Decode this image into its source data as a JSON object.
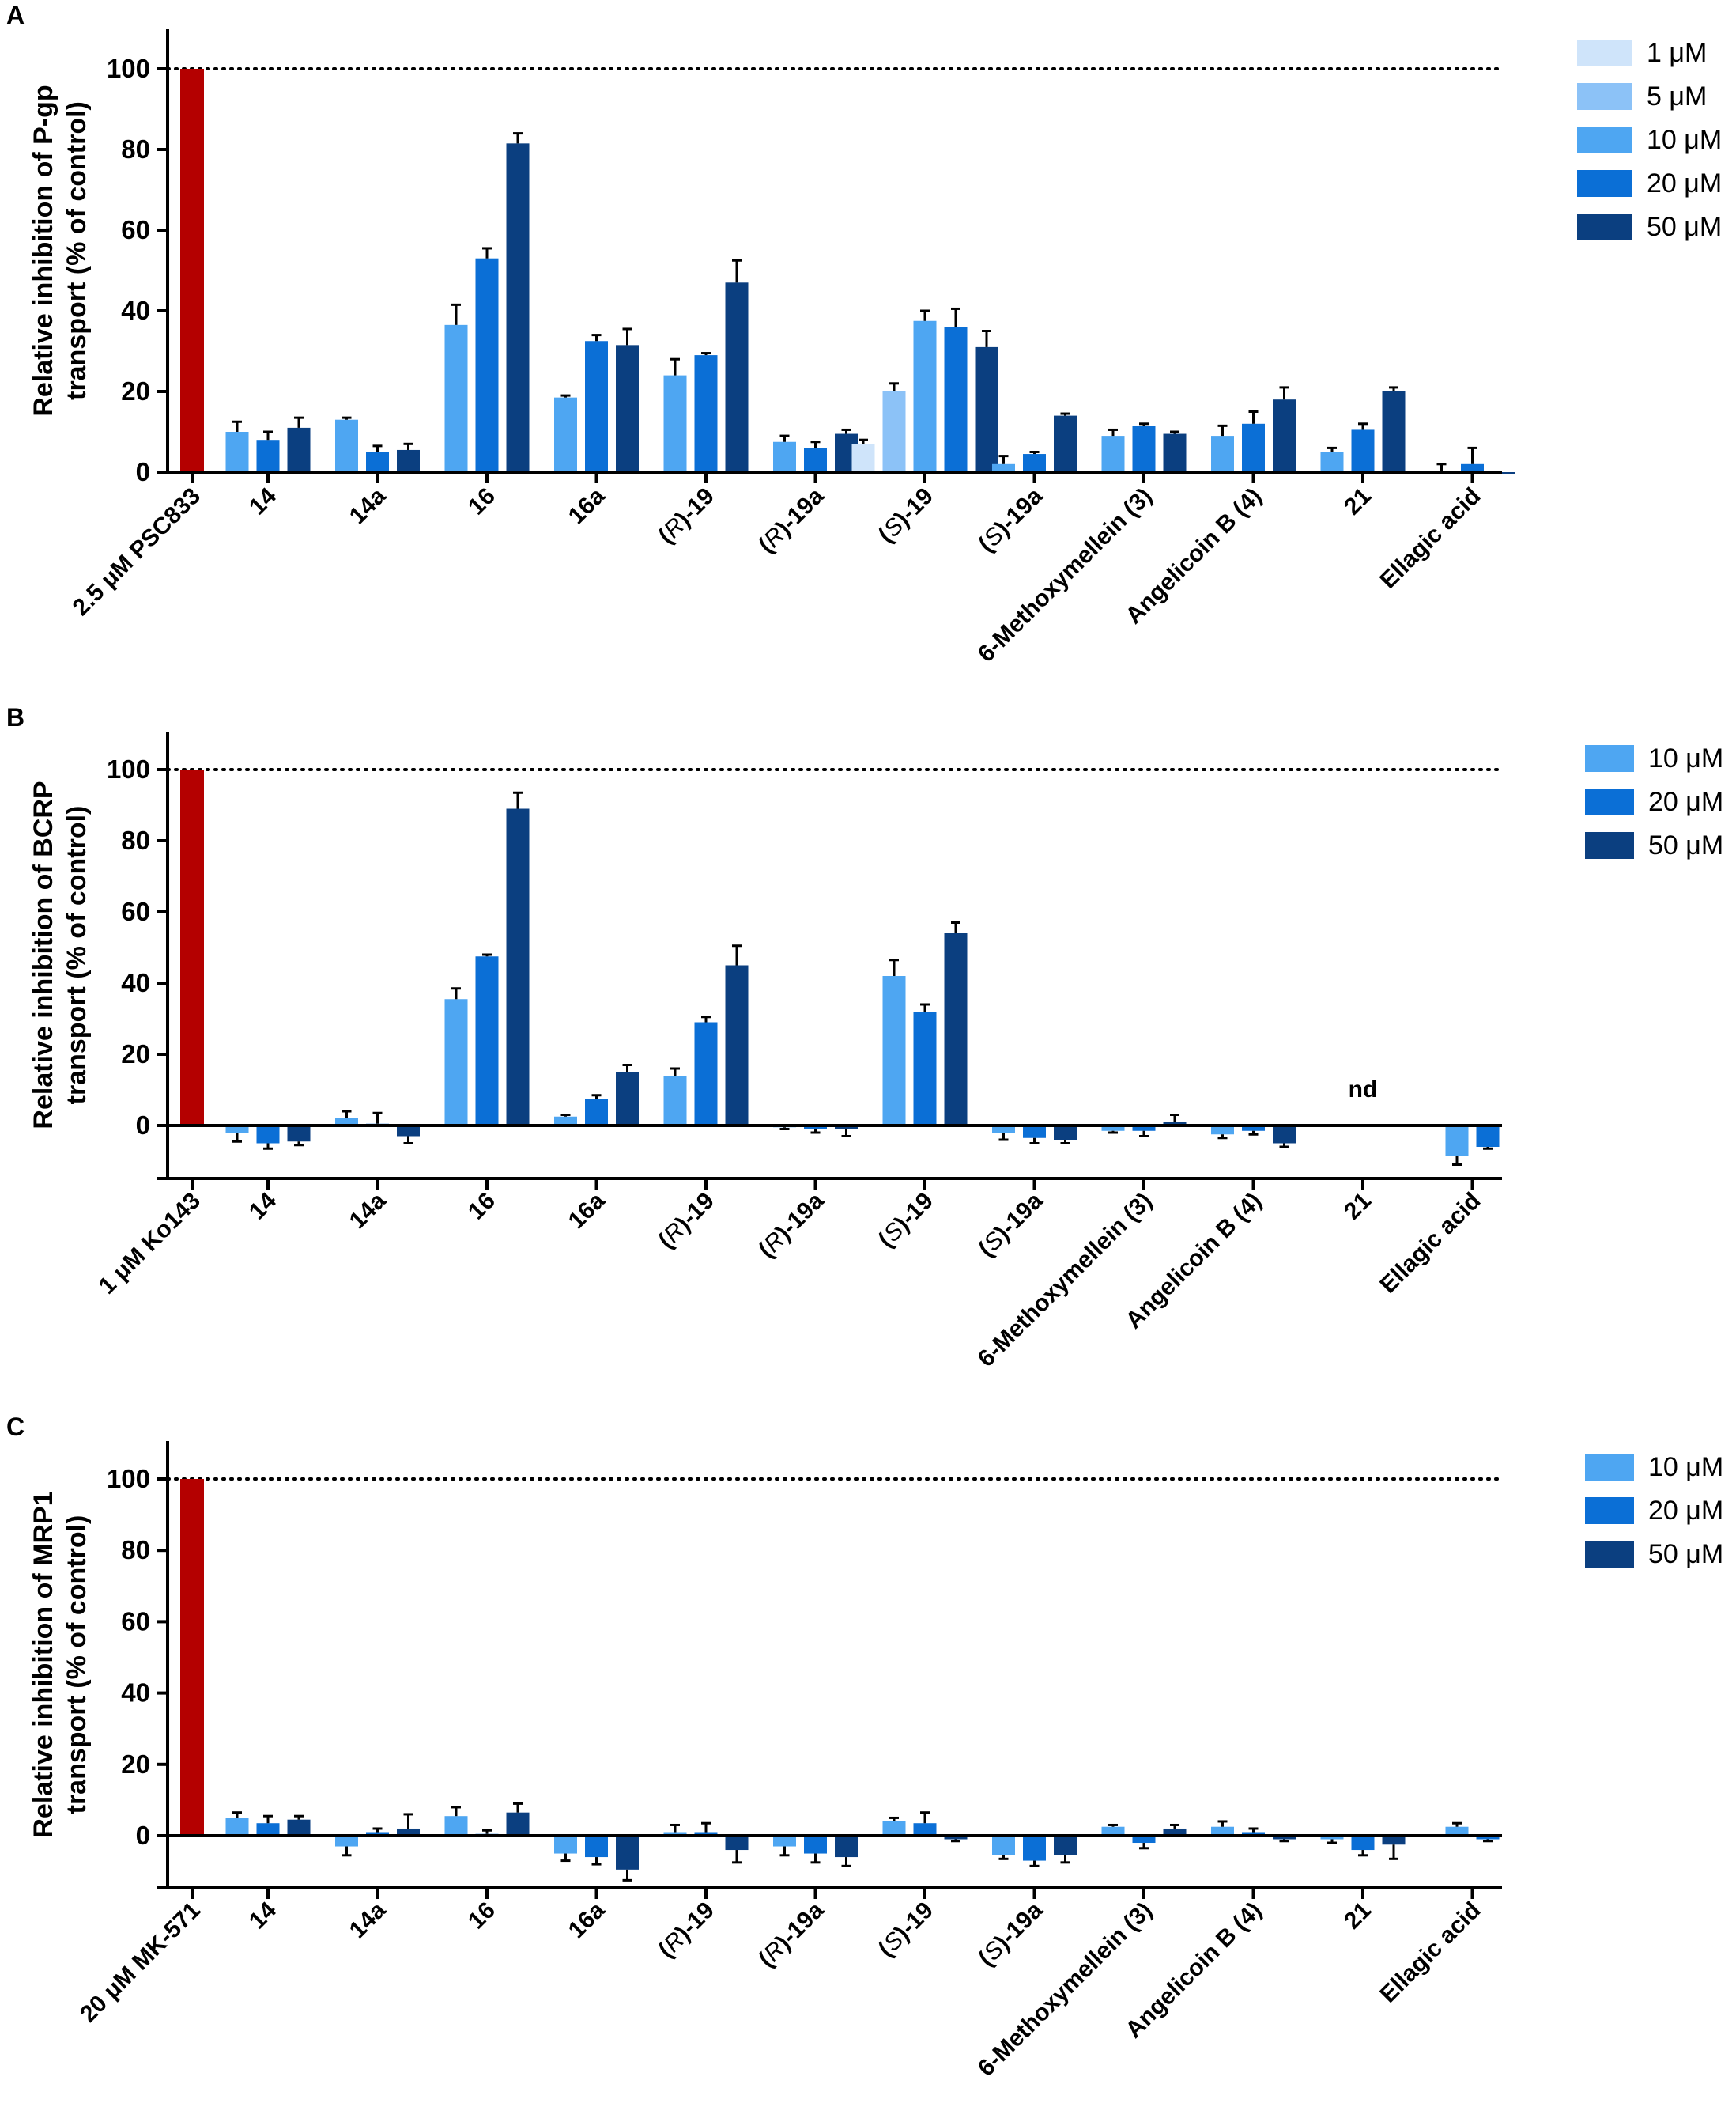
{
  "colors": {
    "c1": "#cfe4fa",
    "c5": "#8cc2f7",
    "c10": "#4ea6f2",
    "c20": "#0b6fd6",
    "c50": "#0b3f80",
    "control": "#b40000"
  },
  "chart_data": [
    {
      "type": "bar",
      "panel": "A",
      "ylabel_line1": "Relative inhibition of P-gp",
      "ylabel_line2": "transport (% of control)",
      "ylim": [
        0,
        110
      ],
      "yticks": [
        "0",
        "20",
        "40",
        "60",
        "80",
        "100"
      ],
      "reference_line": 100,
      "control": {
        "label": "2.5 μM PSC833",
        "value": 100
      },
      "legend": [
        {
          "label": "1 μM",
          "color_key": "c1"
        },
        {
          "label": "5 μM",
          "color_key": "c5"
        },
        {
          "label": "10 μM",
          "color_key": "c10"
        },
        {
          "label": "20 μM",
          "color_key": "c20"
        },
        {
          "label": "50 μM",
          "color_key": "c50"
        }
      ],
      "groups": [
        {
          "label": "14",
          "italic_prefix": "",
          "bars": [
            {
              "c": "c10",
              "v": 10,
              "e": 2.5
            },
            {
              "c": "c20",
              "v": 8,
              "e": 2
            },
            {
              "c": "c50",
              "v": 11,
              "e": 2.5
            }
          ]
        },
        {
          "label": "14a",
          "italic_prefix": "",
          "bars": [
            {
              "c": "c10",
              "v": 13,
              "e": 0.5
            },
            {
              "c": "c20",
              "v": 5,
              "e": 1.5
            },
            {
              "c": "c50",
              "v": 5.5,
              "e": 1.5
            }
          ]
        },
        {
          "label": "16",
          "italic_prefix": "",
          "bars": [
            {
              "c": "c10",
              "v": 36.5,
              "e": 5
            },
            {
              "c": "c20",
              "v": 53,
              "e": 2.5
            },
            {
              "c": "c50",
              "v": 81.5,
              "e": 2.5
            }
          ]
        },
        {
          "label": "16a",
          "italic_prefix": "",
          "bars": [
            {
              "c": "c10",
              "v": 18.5,
              "e": 0.5
            },
            {
              "c": "c20",
              "v": 32.5,
              "e": 1.5
            },
            {
              "c": "c50",
              "v": 31.5,
              "e": 4
            }
          ]
        },
        {
          "label": ")-19",
          "italic_prefix": "R",
          "bars": [
            {
              "c": "c10",
              "v": 24,
              "e": 4
            },
            {
              "c": "c20",
              "v": 29,
              "e": 0.5
            },
            {
              "c": "c50",
              "v": 47,
              "e": 5.5
            }
          ]
        },
        {
          "label": ")-19a",
          "italic_prefix": "R",
          "bars": [
            {
              "c": "c10",
              "v": 7.5,
              "e": 1.5
            },
            {
              "c": "c20",
              "v": 6,
              "e": 1.5
            },
            {
              "c": "c50",
              "v": 9.5,
              "e": 1
            }
          ]
        },
        {
          "label": ")-19",
          "italic_prefix": "S",
          "bars": [
            {
              "c": "c1",
              "v": 7,
              "e": 1
            },
            {
              "c": "c5",
              "v": 20,
              "e": 2
            },
            {
              "c": "c10",
              "v": 37.5,
              "e": 2.5
            },
            {
              "c": "c20",
              "v": 36,
              "e": 4.5
            },
            {
              "c": "c50",
              "v": 31,
              "e": 4
            }
          ]
        },
        {
          "label": ")-19a",
          "italic_prefix": "S",
          "bars": [
            {
              "c": "c10",
              "v": 2,
              "e": 2
            },
            {
              "c": "c20",
              "v": 4.5,
              "e": 0.5
            },
            {
              "c": "c50",
              "v": 14,
              "e": 0.5
            }
          ]
        },
        {
          "label": "6-Methoxymellein (3)",
          "italic_prefix": "",
          "bars": [
            {
              "c": "c10",
              "v": 9,
              "e": 1.5
            },
            {
              "c": "c20",
              "v": 11.5,
              "e": 0.5
            },
            {
              "c": "c50",
              "v": 9.5,
              "e": 0.5
            }
          ]
        },
        {
          "label": "Angelicoin B (4)",
          "italic_prefix": "",
          "bars": [
            {
              "c": "c10",
              "v": 9,
              "e": 2.5
            },
            {
              "c": "c20",
              "v": 12,
              "e": 3
            },
            {
              "c": "c50",
              "v": 18,
              "e": 3
            }
          ]
        },
        {
          "label": "21",
          "italic_prefix": "",
          "bars": [
            {
              "c": "c10",
              "v": 5,
              "e": 1
            },
            {
              "c": "c20",
              "v": 10.5,
              "e": 1.5
            },
            {
              "c": "c50",
              "v": 20,
              "e": 1
            }
          ]
        },
        {
          "label": "Ellagic acid",
          "italic_prefix": "",
          "bars": [
            {
              "c": "c10",
              "v": 0,
              "e": 2
            },
            {
              "c": "c20",
              "v": 2,
              "e": 4
            },
            {
              "c": "c50",
              "v": 0,
              "e": 0
            }
          ]
        }
      ],
      "annotations": []
    },
    {
      "type": "bar",
      "panel": "B",
      "ylabel_line1": "Relative inhibition of BCRP",
      "ylabel_line2": "transport (% of control)",
      "ylim": [
        -15,
        110
      ],
      "yticks": [
        "0",
        "20",
        "40",
        "60",
        "80",
        "100"
      ],
      "reference_line": 100,
      "control": {
        "label": "1 μM Ko143",
        "value": 100
      },
      "legend": [
        {
          "label": "10 μM",
          "color_key": "c10"
        },
        {
          "label": "20 μM",
          "color_key": "c20"
        },
        {
          "label": "50 μM",
          "color_key": "c50"
        }
      ],
      "groups": [
        {
          "label": "14",
          "italic_prefix": "",
          "bars": [
            {
              "c": "c10",
              "v": -2,
              "e": -2.5
            },
            {
              "c": "c20",
              "v": -5,
              "e": -1.5
            },
            {
              "c": "c50",
              "v": -4.5,
              "e": -1
            }
          ]
        },
        {
          "label": "14a",
          "italic_prefix": "",
          "bars": [
            {
              "c": "c10",
              "v": 2,
              "e": 2
            },
            {
              "c": "c20",
              "v": 0.5,
              "e": 3
            },
            {
              "c": "c50",
              "v": -3,
              "e": -2
            }
          ]
        },
        {
          "label": "16",
          "italic_prefix": "",
          "bars": [
            {
              "c": "c10",
              "v": 35.5,
              "e": 3
            },
            {
              "c": "c20",
              "v": 47.5,
              "e": 0.5
            },
            {
              "c": "c50",
              "v": 89,
              "e": 4.5
            }
          ]
        },
        {
          "label": "16a",
          "italic_prefix": "",
          "bars": [
            {
              "c": "c10",
              "v": 2.5,
              "e": 0.5
            },
            {
              "c": "c20",
              "v": 7.5,
              "e": 1
            },
            {
              "c": "c50",
              "v": 15,
              "e": 2
            }
          ]
        },
        {
          "label": ")-19",
          "italic_prefix": "R",
          "bars": [
            {
              "c": "c10",
              "v": 14,
              "e": 2
            },
            {
              "c": "c20",
              "v": 29,
              "e": 1.5
            },
            {
              "c": "c50",
              "v": 45,
              "e": 5.5
            }
          ]
        },
        {
          "label": ")-19a",
          "italic_prefix": "R",
          "bars": [
            {
              "c": "c10",
              "v": -0.5,
              "e": -0.5
            },
            {
              "c": "c20",
              "v": -1,
              "e": -1
            },
            {
              "c": "c50",
              "v": -1,
              "e": -2
            }
          ]
        },
        {
          "label": ")-19",
          "italic_prefix": "S",
          "bars": [
            {
              "c": "c10",
              "v": 42,
              "e": 4.5
            },
            {
              "c": "c20",
              "v": 32,
              "e": 2
            },
            {
              "c": "c50",
              "v": 54,
              "e": 3
            }
          ]
        },
        {
          "label": ")-19a",
          "italic_prefix": "S",
          "bars": [
            {
              "c": "c10",
              "v": -2,
              "e": -2
            },
            {
              "c": "c20",
              "v": -3.5,
              "e": -1.5
            },
            {
              "c": "c50",
              "v": -4,
              "e": -1
            }
          ]
        },
        {
          "label": "6-Methoxymellein (3)",
          "italic_prefix": "",
          "bars": [
            {
              "c": "c10",
              "v": -1.5,
              "e": -0.5
            },
            {
              "c": "c20",
              "v": -1.5,
              "e": -1.5
            },
            {
              "c": "c50",
              "v": 1,
              "e": 2
            }
          ]
        },
        {
          "label": "Angelicoin B (4)",
          "italic_prefix": "",
          "bars": [
            {
              "c": "c10",
              "v": -2.5,
              "e": -1
            },
            {
              "c": "c20",
              "v": -1.5,
              "e": -1
            },
            {
              "c": "c50",
              "v": -5,
              "e": -1
            }
          ]
        },
        {
          "label": "21",
          "italic_prefix": "",
          "bars": []
        },
        {
          "label": "Ellagic acid",
          "italic_prefix": "",
          "bars": [
            {
              "c": "c10",
              "v": -8.5,
              "e": -2.5
            },
            {
              "c": "c20",
              "v": -6,
              "e": -0.5
            }
          ]
        }
      ],
      "annotations": [
        {
          "group_index": 10,
          "text": "nd"
        }
      ]
    },
    {
      "type": "bar",
      "panel": "C",
      "ylabel_line1": "Relative inhibition of MRP1",
      "ylabel_line2": "transport (% of control)",
      "ylim": [
        -14,
        110
      ],
      "yticks": [
        "0",
        "20",
        "40",
        "60",
        "80",
        "100"
      ],
      "reference_line": 100,
      "control": {
        "label": "20 μM MK-571",
        "value": 100
      },
      "legend": [
        {
          "label": "10 μM",
          "color_key": "c10"
        },
        {
          "label": "20 μM",
          "color_key": "c20"
        },
        {
          "label": "50 μM",
          "color_key": "c50"
        }
      ],
      "groups": [
        {
          "label": "14",
          "italic_prefix": "",
          "bars": [
            {
              "c": "c10",
              "v": 5,
              "e": 1.5
            },
            {
              "c": "c20",
              "v": 3.5,
              "e": 2
            },
            {
              "c": "c50",
              "v": 4.5,
              "e": 1
            }
          ]
        },
        {
          "label": "14a",
          "italic_prefix": "",
          "bars": [
            {
              "c": "c10",
              "v": -3,
              "e": -2.5
            },
            {
              "c": "c20",
              "v": 1,
              "e": 1
            },
            {
              "c": "c50",
              "v": 2,
              "e": 4
            }
          ]
        },
        {
          "label": "16",
          "italic_prefix": "",
          "bars": [
            {
              "c": "c10",
              "v": 5.5,
              "e": 2.5
            },
            {
              "c": "c20",
              "v": 0.5,
              "e": 1
            },
            {
              "c": "c50",
              "v": 6.5,
              "e": 2.5
            }
          ]
        },
        {
          "label": "16a",
          "italic_prefix": "",
          "bars": [
            {
              "c": "c10",
              "v": -5,
              "e": -2
            },
            {
              "c": "c20",
              "v": -6,
              "e": -2
            },
            {
              "c": "c50",
              "v": -9.5,
              "e": -3
            }
          ]
        },
        {
          "label": ")-19",
          "italic_prefix": "R",
          "bars": [
            {
              "c": "c10",
              "v": 1,
              "e": 2
            },
            {
              "c": "c20",
              "v": 1,
              "e": 2.5
            },
            {
              "c": "c50",
              "v": -4,
              "e": -3.5
            }
          ]
        },
        {
          "label": ")-19a",
          "italic_prefix": "R",
          "bars": [
            {
              "c": "c10",
              "v": -3,
              "e": -2.5
            },
            {
              "c": "c20",
              "v": -5,
              "e": -2.5
            },
            {
              "c": "c50",
              "v": -6,
              "e": -2.5
            }
          ]
        },
        {
          "label": ")-19",
          "italic_prefix": "S",
          "bars": [
            {
              "c": "c10",
              "v": 4,
              "e": 1
            },
            {
              "c": "c20",
              "v": 3.5,
              "e": 3
            },
            {
              "c": "c50",
              "v": -1,
              "e": -0.5
            }
          ]
        },
        {
          "label": ")-19a",
          "italic_prefix": "S",
          "bars": [
            {
              "c": "c10",
              "v": -5.5,
              "e": -1
            },
            {
              "c": "c20",
              "v": -7,
              "e": -1.5
            },
            {
              "c": "c50",
              "v": -5.5,
              "e": -2
            }
          ]
        },
        {
          "label": "6-Methoxymellein (3)",
          "italic_prefix": "",
          "bars": [
            {
              "c": "c10",
              "v": 2.5,
              "e": 0.5
            },
            {
              "c": "c20",
              "v": -2,
              "e": -1.5
            },
            {
              "c": "c50",
              "v": 2,
              "e": 1
            }
          ]
        },
        {
          "label": "Angelicoin B (4)",
          "italic_prefix": "",
          "bars": [
            {
              "c": "c10",
              "v": 2.5,
              "e": 1.5
            },
            {
              "c": "c20",
              "v": 1,
              "e": 1
            },
            {
              "c": "c50",
              "v": -1,
              "e": -0.5
            }
          ]
        },
        {
          "label": "21",
          "italic_prefix": "",
          "bars": [
            {
              "c": "c10",
              "v": -1,
              "e": -1
            },
            {
              "c": "c20",
              "v": -4,
              "e": -1.5
            },
            {
              "c": "c50",
              "v": -2.5,
              "e": -4
            }
          ]
        },
        {
          "label": "Ellagic acid",
          "italic_prefix": "",
          "bars": [
            {
              "c": "c10",
              "v": 2.5,
              "e": 1
            },
            {
              "c": "c20",
              "v": -1,
              "e": -0.5
            }
          ]
        }
      ],
      "annotations": []
    }
  ]
}
